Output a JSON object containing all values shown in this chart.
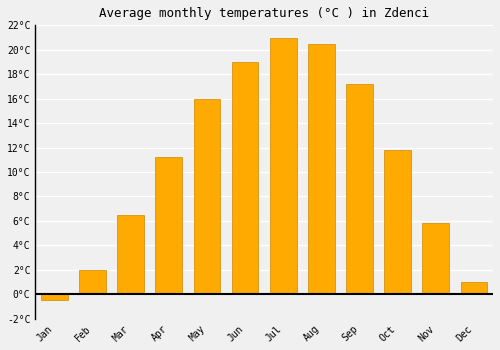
{
  "months": [
    "Jan",
    "Feb",
    "Mar",
    "Apr",
    "May",
    "Jun",
    "Jul",
    "Aug",
    "Sep",
    "Oct",
    "Nov",
    "Dec"
  ],
  "values": [
    -0.5,
    2.0,
    6.5,
    11.2,
    16.0,
    19.0,
    21.0,
    20.5,
    17.2,
    11.8,
    5.8,
    1.0
  ],
  "bar_color": "#FFAA00",
  "bar_edge_color": "#CC8800",
  "title": "Average monthly temperatures (°C ) in Zdenci",
  "ylim": [
    -2,
    22
  ],
  "yticks": [
    -2,
    0,
    2,
    4,
    6,
    8,
    10,
    12,
    14,
    16,
    18,
    20,
    22
  ],
  "ytick_labels": [
    "-2°C",
    "0°C",
    "2°C",
    "4°C",
    "6°C",
    "8°C",
    "10°C",
    "12°C",
    "14°C",
    "16°C",
    "18°C",
    "20°C",
    "22°C"
  ],
  "background_color": "#f0f0f0",
  "grid_color": "#ffffff",
  "title_fontsize": 9,
  "tick_fontsize": 7,
  "zero_line_color": "#000000",
  "bar_width": 0.7
}
